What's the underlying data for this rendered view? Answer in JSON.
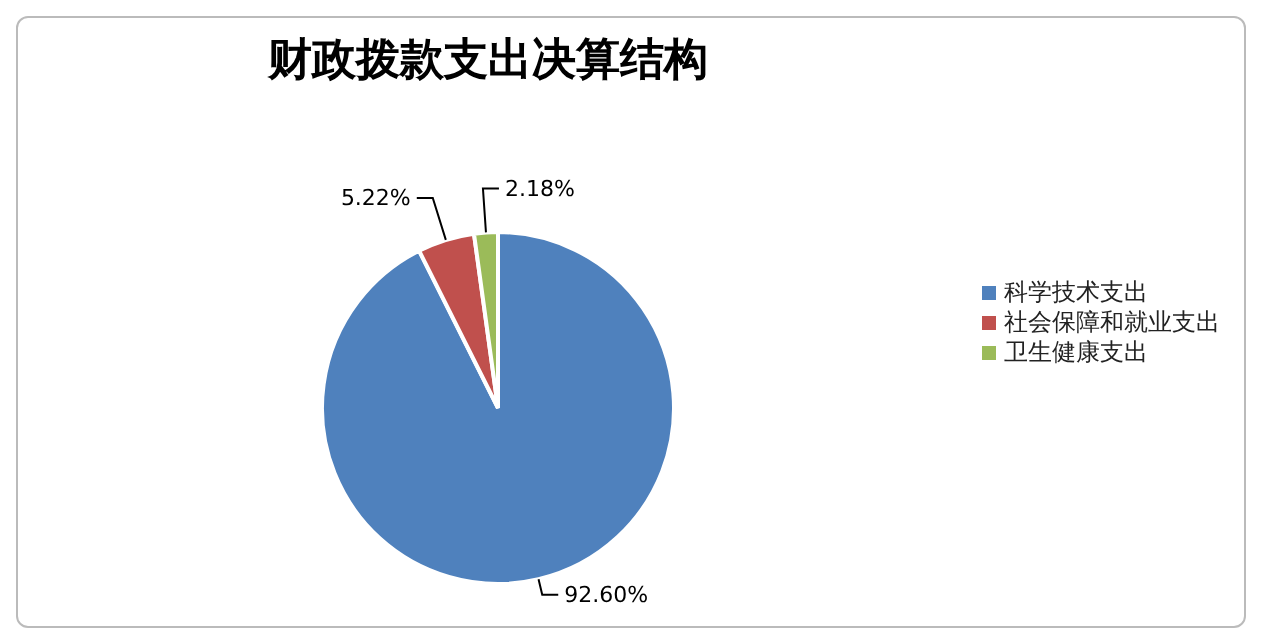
{
  "chart_data": {
    "type": "pie",
    "title": "财政拨款支出决算结构",
    "categories": [
      "科学技术支出",
      "社会保障和就业支出",
      "卫生健康支出"
    ],
    "values": [
      92.6,
      5.22,
      2.18
    ],
    "value_labels": [
      "92.60%",
      "5.22%",
      "2.18%"
    ],
    "colors": [
      "#4f81bd",
      "#c0504d",
      "#9bbb59"
    ],
    "legend": "right"
  }
}
